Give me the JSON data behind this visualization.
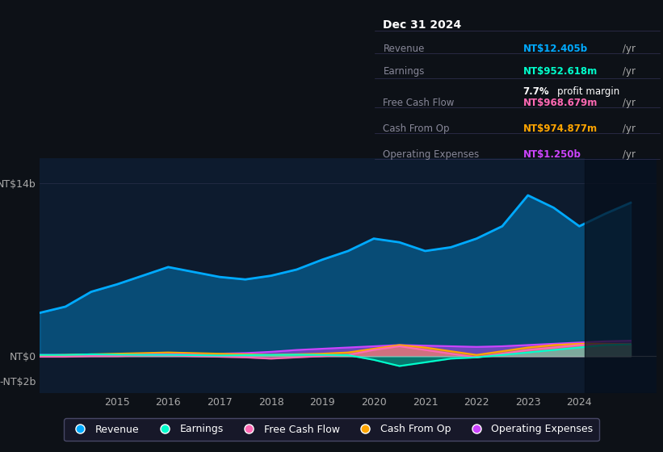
{
  "bg_color": "#0d1117",
  "plot_bg_color": "#0d1b2e",
  "title": "Dec 31 2024",
  "table_data": {
    "Revenue": {
      "value": "NT$12.405b",
      "unit": "/yr",
      "color": "#00aaff"
    },
    "Earnings": {
      "value": "NT$952.618m",
      "unit": "/yr",
      "color": "#00ffcc"
    },
    "profit_margin": {
      "value": "7.7%",
      "label": "profit margin",
      "color": "#ffffff"
    },
    "Free Cash Flow": {
      "value": "NT$968.679m",
      "unit": "/yr",
      "color": "#ff69b4"
    },
    "Cash From Op": {
      "value": "NT$974.877m",
      "unit": "/yr",
      "color": "#ffa500"
    },
    "Operating Expenses": {
      "value": "NT$1.250b",
      "unit": "/yr",
      "color": "#cc44ff"
    }
  },
  "yticks": [
    "NT$14b",
    "NT$0",
    "-NT$2b"
  ],
  "ytick_vals": [
    14000000000,
    0,
    -2000000000
  ],
  "xticks": [
    "2015",
    "2016",
    "2017",
    "2018",
    "2019",
    "2020",
    "2021",
    "2022",
    "2023",
    "2024"
  ],
  "ylim": [
    -3000000000,
    16000000000
  ],
  "xlim": [
    2013.5,
    2025.5
  ],
  "legend": [
    {
      "label": "Revenue",
      "color": "#00aaff"
    },
    {
      "label": "Earnings",
      "color": "#00ffcc"
    },
    {
      "label": "Free Cash Flow",
      "color": "#ff69b4"
    },
    {
      "label": "Cash From Op",
      "color": "#ffa500"
    },
    {
      "label": "Operating Expenses",
      "color": "#cc44ff"
    }
  ],
  "revenue": {
    "x": [
      2013.5,
      2014,
      2014.5,
      2015,
      2015.5,
      2016,
      2016.5,
      2017,
      2017.5,
      2018,
      2018.5,
      2019,
      2019.5,
      2020,
      2020.5,
      2021,
      2021.5,
      2022,
      2022.5,
      2023,
      2023.5,
      2024,
      2024.5,
      2025
    ],
    "y": [
      3500000000,
      4000000000,
      5200000000,
      5800000000,
      6500000000,
      7200000000,
      6800000000,
      6400000000,
      6200000000,
      6500000000,
      7000000000,
      7800000000,
      8500000000,
      9500000000,
      9200000000,
      8500000000,
      8800000000,
      9500000000,
      10500000000,
      13000000000,
      12000000000,
      10500000000,
      11500000000,
      12400000000
    ]
  },
  "earnings": {
    "x": [
      2013.5,
      2014,
      2014.5,
      2015,
      2015.5,
      2016,
      2016.5,
      2017,
      2017.5,
      2018,
      2018.5,
      2019,
      2019.5,
      2020,
      2020.5,
      2021,
      2021.5,
      2022,
      2022.5,
      2023,
      2023.5,
      2024,
      2024.5,
      2025
    ],
    "y": [
      100000000,
      100000000,
      150000000,
      120000000,
      100000000,
      100000000,
      80000000,
      50000000,
      80000000,
      100000000,
      120000000,
      100000000,
      80000000,
      -300000000,
      -800000000,
      -500000000,
      -200000000,
      -100000000,
      100000000,
      300000000,
      500000000,
      700000000,
      900000000,
      950000000
    ]
  },
  "free_cash_flow": {
    "x": [
      2013.5,
      2014,
      2014.5,
      2015,
      2015.5,
      2016,
      2016.5,
      2017,
      2017.5,
      2018,
      2018.5,
      2019,
      2019.5,
      2020,
      2020.5,
      2021,
      2021.5,
      2022,
      2022.5,
      2023,
      2023.5,
      2024,
      2024.5,
      2025
    ],
    "y": [
      -50000000,
      -50000000,
      0,
      0,
      50000000,
      50000000,
      0,
      -50000000,
      -100000000,
      -200000000,
      -100000000,
      0,
      100000000,
      500000000,
      800000000,
      500000000,
      200000000,
      -100000000,
      200000000,
      500000000,
      700000000,
      900000000,
      950000000,
      970000000
    ]
  },
  "cash_from_op": {
    "x": [
      2013.5,
      2014,
      2014.5,
      2015,
      2015.5,
      2016,
      2016.5,
      2017,
      2017.5,
      2018,
      2018.5,
      2019,
      2019.5,
      2020,
      2020.5,
      2021,
      2021.5,
      2022,
      2022.5,
      2023,
      2023.5,
      2024,
      2024.5,
      2025
    ],
    "y": [
      50000000,
      100000000,
      150000000,
      200000000,
      250000000,
      300000000,
      250000000,
      200000000,
      150000000,
      100000000,
      150000000,
      200000000,
      300000000,
      600000000,
      900000000,
      700000000,
      400000000,
      100000000,
      400000000,
      700000000,
      900000000,
      1000000000,
      1000000000,
      970000000
    ]
  },
  "op_expenses": {
    "x": [
      2013.5,
      2014,
      2014.5,
      2015,
      2015.5,
      2016,
      2016.5,
      2017,
      2017.5,
      2018,
      2018.5,
      2019,
      2019.5,
      2020,
      2020.5,
      2021,
      2021.5,
      2022,
      2022.5,
      2023,
      2023.5,
      2024,
      2024.5,
      2025
    ],
    "y": [
      100000000,
      100000000,
      120000000,
      120000000,
      150000000,
      150000000,
      180000000,
      200000000,
      250000000,
      350000000,
      500000000,
      600000000,
      700000000,
      800000000,
      900000000,
      850000000,
      800000000,
      750000000,
      800000000,
      900000000,
      1000000000,
      1100000000,
      1200000000,
      1250000000
    ]
  }
}
